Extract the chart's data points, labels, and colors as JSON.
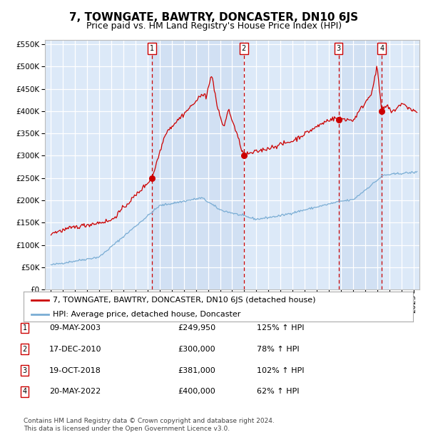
{
  "title": "7, TOWNGATE, BAWTRY, DONCASTER, DN10 6JS",
  "subtitle": "Price paid vs. HM Land Registry's House Price Index (HPI)",
  "legend_red": "7, TOWNGATE, BAWTRY, DONCASTER, DN10 6JS (detached house)",
  "legend_blue": "HPI: Average price, detached house, Doncaster",
  "footer1": "Contains HM Land Registry data © Crown copyright and database right 2024.",
  "footer2": "This data is licensed under the Open Government Licence v3.0.",
  "transactions": [
    {
      "num": 1,
      "date": "09-MAY-2003",
      "price": 249950,
      "pct": "125%",
      "dir": "↑",
      "year": 2003.36
    },
    {
      "num": 2,
      "date": "17-DEC-2010",
      "price": 300000,
      "pct": "78%",
      "dir": "↑",
      "year": 2010.96
    },
    {
      "num": 3,
      "date": "19-OCT-2018",
      "price": 381000,
      "pct": "102%",
      "dir": "↑",
      "year": 2018.8
    },
    {
      "num": 4,
      "date": "20-MAY-2022",
      "price": 400000,
      "pct": "62%",
      "dir": "↑",
      "year": 2022.38
    }
  ],
  "ylim": [
    0,
    560000
  ],
  "xlim_start": 1994.5,
  "xlim_end": 2025.5,
  "plot_bg": "#dce9f8",
  "grid_color": "#ffffff",
  "red_line_color": "#cc0000",
  "blue_line_color": "#7aadd4",
  "dashed_line_color": "#cc0000",
  "marker_color": "#cc0000",
  "shade_color": "#c8daf0",
  "title_fontsize": 11,
  "subtitle_fontsize": 9,
  "tick_fontsize": 7.5,
  "legend_fontsize": 8,
  "table_fontsize": 8,
  "footer_fontsize": 6.5
}
